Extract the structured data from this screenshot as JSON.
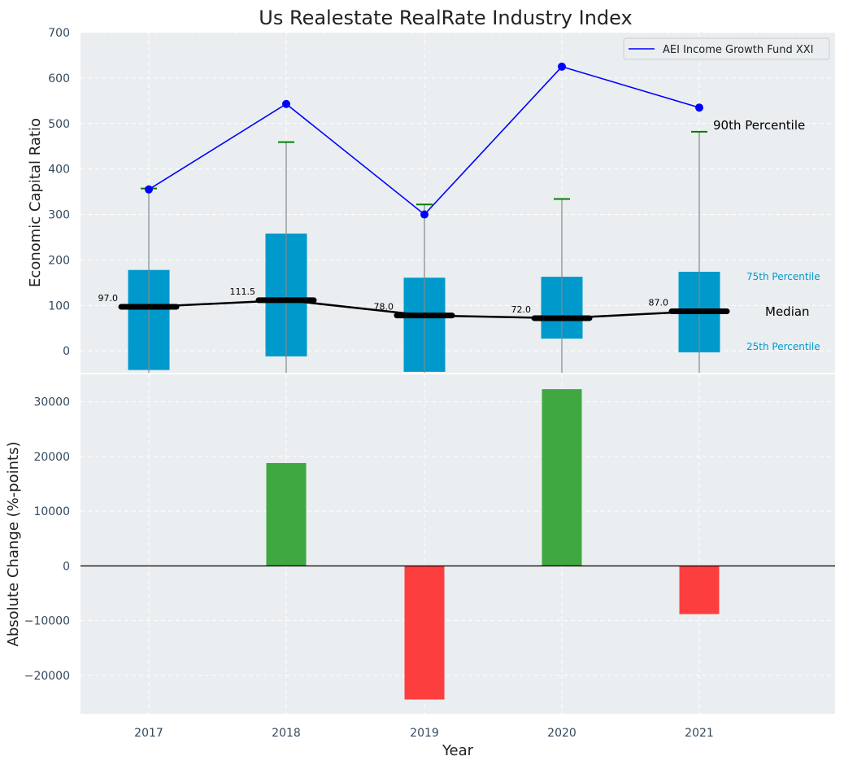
{
  "title": "Us Realestate RealRate Industry Index",
  "colors": {
    "panel_bg": "#EAEEF0",
    "grid": "#FFFFFF",
    "box": "#0099CC",
    "fund_line": "#0000FF",
    "whisker_cap": "#008000",
    "whisker": "#7F8C8D",
    "median": "#000000",
    "positive": "#2CA02C",
    "negative": "#FF2A2A",
    "tick_text": "#34495E",
    "percentile_label": "#0099CC"
  },
  "chart_data": [
    {
      "type": "box",
      "ylabel": "Economic Capital Ratio",
      "ylim": [
        -48,
        700
      ],
      "yticks": [
        0,
        100,
        200,
        300,
        400,
        500,
        600,
        700
      ],
      "years": [
        "2017",
        "2018",
        "2019",
        "2020",
        "2021"
      ],
      "p25": [
        -42,
        -12,
        -46,
        27,
        -3
      ],
      "p75": [
        178,
        258,
        161,
        163,
        174
      ],
      "median": [
        97.0,
        111.5,
        78.0,
        72.0,
        87.0
      ],
      "median_labels": [
        "97.0",
        "111.5",
        "78.0",
        "72.0",
        "87.0"
      ],
      "p90": [
        357,
        459,
        322,
        334,
        482
      ],
      "fund_series": {
        "name": "AEI Income Growth Fund XXI",
        "values": [
          355,
          543,
          300,
          625,
          535
        ]
      },
      "annotations": {
        "p90": "90th Percentile",
        "p75": "75th Percentile",
        "median": "Median",
        "p25": "25th Percentile"
      },
      "legend_position": "top-right",
      "grid": true
    },
    {
      "type": "bar",
      "ylabel": "Absolute Change (%-points)",
      "xlabel": "Year",
      "ylim": [
        -27000,
        35000
      ],
      "yticks": [
        -20000,
        -10000,
        0,
        10000,
        20000,
        30000
      ],
      "ytick_labels": [
        "−20000",
        "−10000",
        "0",
        "10000",
        "20000",
        "30000"
      ],
      "categories": [
        "2017",
        "2018",
        "2019",
        "2020",
        "2021"
      ],
      "values": [
        0,
        18800,
        -24400,
        32300,
        -8800
      ],
      "grid": true
    }
  ]
}
